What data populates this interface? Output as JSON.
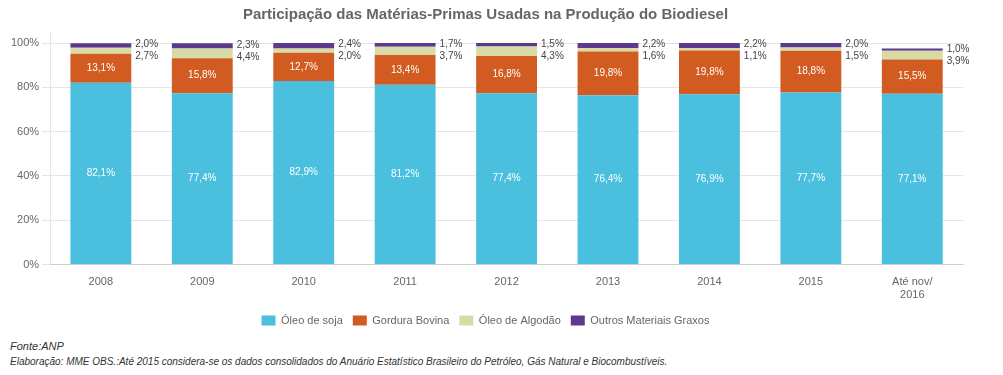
{
  "chart_data": {
    "type": "bar",
    "title": "Participação das Matérias-Primas Usadas na Produção do Biodiesel",
    "categories": [
      "2008",
      "2009",
      "2010",
      "2011",
      "2012",
      "2013",
      "2014",
      "2015",
      "Até nov/\n2016"
    ],
    "series": [
      {
        "name": "Óleo de soja",
        "color": "#4BBFDE",
        "values": [
          82.1,
          77.4,
          82.9,
          81.2,
          77.4,
          76.4,
          76.9,
          77.7,
          77.1
        ],
        "value_labels": [
          "82,1%",
          "77,4%",
          "82,9%",
          "81,2%",
          "77,4%",
          "76,4%",
          "76,9%",
          "77,7%",
          "77,1%"
        ]
      },
      {
        "name": "Gordura Bovina",
        "color": "#D15B20",
        "values": [
          13.1,
          15.8,
          12.7,
          13.4,
          16.8,
          19.8,
          19.8,
          18.8,
          15.5
        ],
        "value_labels": [
          "13,1%",
          "15,8%",
          "12,7%",
          "13,4%",
          "16,8%",
          "19,8%",
          "19,8%",
          "18,8%",
          "15,5%"
        ]
      },
      {
        "name": "Óleo de Algodão",
        "color": "#D8DBA5",
        "values": [
          2.7,
          4.4,
          2.0,
          3.7,
          4.3,
          1.6,
          1.1,
          1.5,
          3.9
        ],
        "value_labels": [
          "2,7%",
          "4,4%",
          "2,0%",
          "3,7%",
          "4,3%",
          "1,6%",
          "1,1%",
          "1,5%",
          "3,9%"
        ]
      },
      {
        "name": "Outros Materiais Graxos",
        "color": "#5B3A8E",
        "values": [
          2.0,
          2.3,
          2.4,
          1.7,
          1.5,
          2.2,
          2.2,
          2.0,
          1.0
        ],
        "value_labels": [
          "2,0%",
          "2,3%",
          "2,4%",
          "1,7%",
          "1,5%",
          "2,2%",
          "2,2%",
          "2,0%",
          "1,0%"
        ]
      }
    ],
    "ylim": [
      0,
      105
    ],
    "yticks": [
      {
        "value": 0,
        "label": "0%"
      },
      {
        "value": 20,
        "label": "20%"
      },
      {
        "value": 40,
        "label": "40%"
      },
      {
        "value": 60,
        "label": "60%"
      },
      {
        "value": 80,
        "label": "80%"
      },
      {
        "value": 100,
        "label": "100%"
      }
    ],
    "grid": true,
    "stacked": true,
    "data_labels": true,
    "legend": "bottom",
    "annotations": [
      "Fonte:ANP",
      "Elaboração: MME  OBS.:Até 2015 considera-se os dados consolidados do Anuário Estatístico Brasileiro do Petróleo, Gás Natural e Biocombustíveis."
    ]
  }
}
